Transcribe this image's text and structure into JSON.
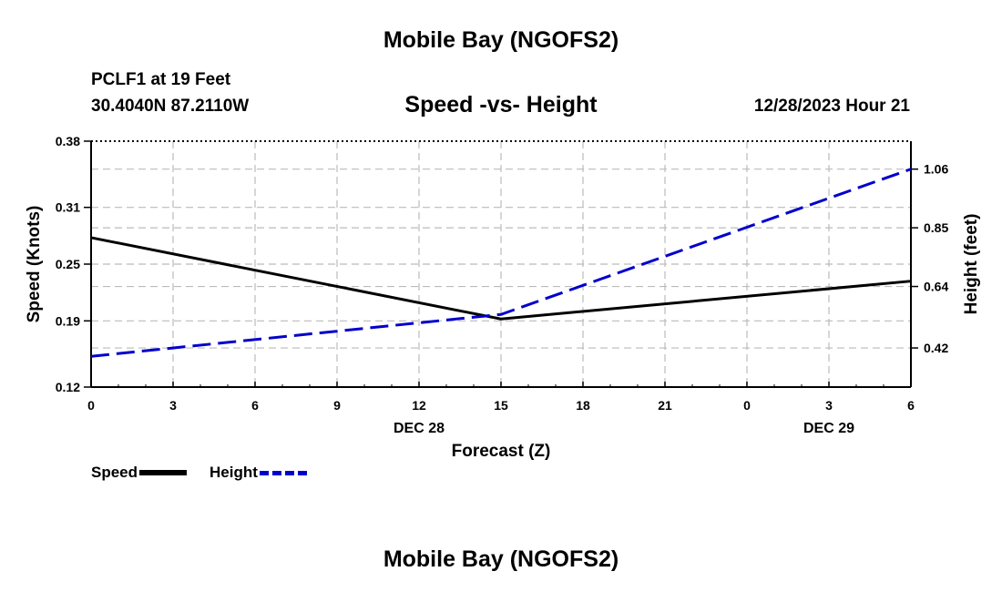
{
  "header": {
    "title": "Mobile Bay (NGOFS2)",
    "station": "PCLF1 at 19 Feet",
    "coords": "30.4040N  87.2110W",
    "subtitle": "Speed -vs- Height",
    "datetime": "12/28/2023 Hour 21"
  },
  "footer": {
    "title": "Mobile Bay (NGOFS2)"
  },
  "chart_data": {
    "type": "line",
    "xlabel": "Forecast (Z)",
    "ylabel_left": "Speed (Knots)",
    "ylabel_right": "Height (feet)",
    "x_ticks": [
      "0",
      "3",
      "6",
      "9",
      "12",
      "15",
      "18",
      "21",
      "0",
      "3",
      "6"
    ],
    "date_labels": [
      {
        "label": "DEC 28",
        "at_tick": 4
      },
      {
        "label": "DEC 29",
        "at_tick": 9
      }
    ],
    "xlim": [
      0,
      30
    ],
    "y_left": {
      "lim": [
        0.12,
        0.38
      ],
      "ticks": [
        "0.12",
        "0.19",
        "0.25",
        "0.31",
        "0.38"
      ]
    },
    "y_right": {
      "lim": [
        0.28,
        1.16
      ],
      "ticks": [
        "0.42",
        "0.64",
        "0.85",
        "1.06"
      ]
    },
    "grid": true,
    "legend_position": "bottom-left",
    "series": [
      {
        "name": "Speed",
        "axis": "left",
        "color": "#000000",
        "style": "solid",
        "x": [
          0,
          15,
          30
        ],
        "y": [
          0.278,
          0.192,
          0.232
        ]
      },
      {
        "name": "Height",
        "axis": "right",
        "color": "#0000cc",
        "style": "dashed",
        "x": [
          0,
          15,
          30
        ],
        "y": [
          0.39,
          0.54,
          1.06
        ]
      }
    ]
  }
}
